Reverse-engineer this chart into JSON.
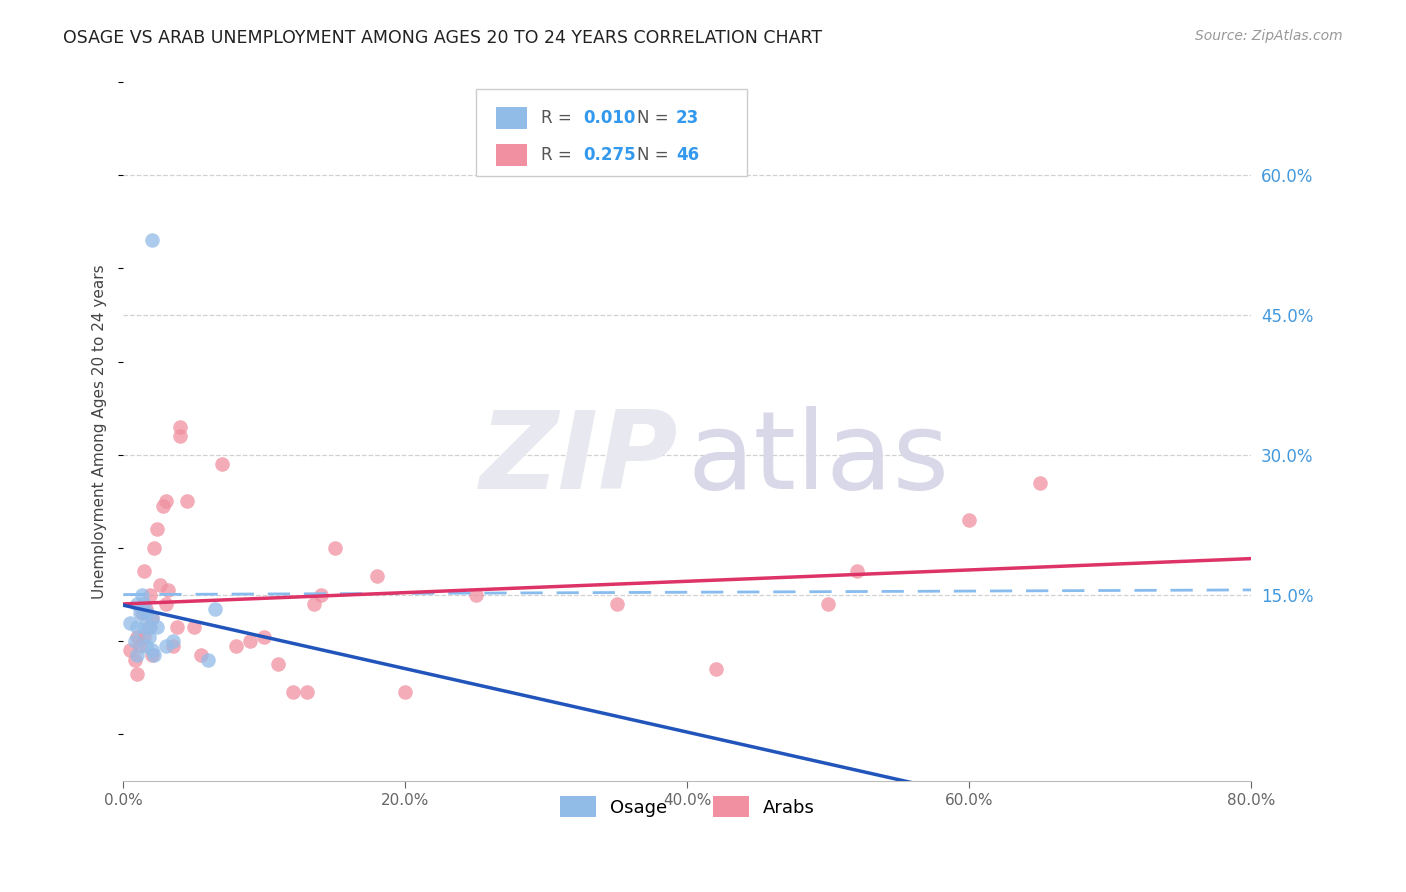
{
  "title": "OSAGE VS ARAB UNEMPLOYMENT AMONG AGES 20 TO 24 YEARS CORRELATION CHART",
  "source": "Source: ZipAtlas.com",
  "ylabel": "Unemployment Among Ages 20 to 24 years",
  "xlim": [
    0.0,
    0.8
  ],
  "ylim": [
    -0.05,
    0.7
  ],
  "xticks": [
    0.0,
    0.2,
    0.4,
    0.6,
    0.8
  ],
  "xtick_labels": [
    "0.0%",
    "20.0%",
    "40.0%",
    "60.0%",
    "80.0%"
  ],
  "ytick_labels_right": [
    "15.0%",
    "30.0%",
    "45.0%",
    "60.0%"
  ],
  "ytick_values_right": [
    0.15,
    0.3,
    0.45,
    0.6
  ],
  "legend1_R": "0.010",
  "legend1_N": "23",
  "legend2_R": "0.275",
  "legend2_N": "46",
  "osage_color": "#92bce8",
  "arab_color": "#f090a0",
  "trend_osage_solid_color": "#2255bb",
  "trend_arab_solid_color": "#dd3366",
  "trend_osage_dashed_color": "#88bbee",
  "watermark_zip_color": "#e8e8f0",
  "watermark_atlas_color": "#d8d8e8",
  "background_color": "#ffffff",
  "grid_color": "#cccccc",
  "osage_x": [
    0.005,
    0.008,
    0.01,
    0.01,
    0.01,
    0.012,
    0.013,
    0.014,
    0.015,
    0.015,
    0.016,
    0.017,
    0.018,
    0.019,
    0.02,
    0.02,
    0.022,
    0.024,
    0.03,
    0.035,
    0.06,
    0.065,
    0.02
  ],
  "osage_y": [
    0.12,
    0.1,
    0.085,
    0.115,
    0.14,
    0.13,
    0.15,
    0.13,
    0.115,
    0.14,
    0.095,
    0.13,
    0.105,
    0.115,
    0.09,
    0.125,
    0.085,
    0.115,
    0.095,
    0.1,
    0.08,
    0.135,
    0.53
  ],
  "arab_x": [
    0.005,
    0.008,
    0.01,
    0.01,
    0.012,
    0.013,
    0.015,
    0.015,
    0.016,
    0.018,
    0.019,
    0.02,
    0.02,
    0.022,
    0.024,
    0.026,
    0.028,
    0.03,
    0.03,
    0.032,
    0.035,
    0.038,
    0.04,
    0.04,
    0.045,
    0.05,
    0.055,
    0.07,
    0.08,
    0.09,
    0.1,
    0.11,
    0.12,
    0.13,
    0.135,
    0.14,
    0.15,
    0.18,
    0.2,
    0.25,
    0.35,
    0.42,
    0.5,
    0.52,
    0.6,
    0.65
  ],
  "arab_y": [
    0.09,
    0.08,
    0.065,
    0.105,
    0.095,
    0.13,
    0.105,
    0.175,
    0.135,
    0.115,
    0.15,
    0.085,
    0.125,
    0.2,
    0.22,
    0.16,
    0.245,
    0.14,
    0.25,
    0.155,
    0.095,
    0.115,
    0.32,
    0.33,
    0.25,
    0.115,
    0.085,
    0.29,
    0.095,
    0.1,
    0.105,
    0.075,
    0.045,
    0.045,
    0.14,
    0.15,
    0.2,
    0.17,
    0.045,
    0.15,
    0.14,
    0.07,
    0.14,
    0.175,
    0.23,
    0.27
  ]
}
